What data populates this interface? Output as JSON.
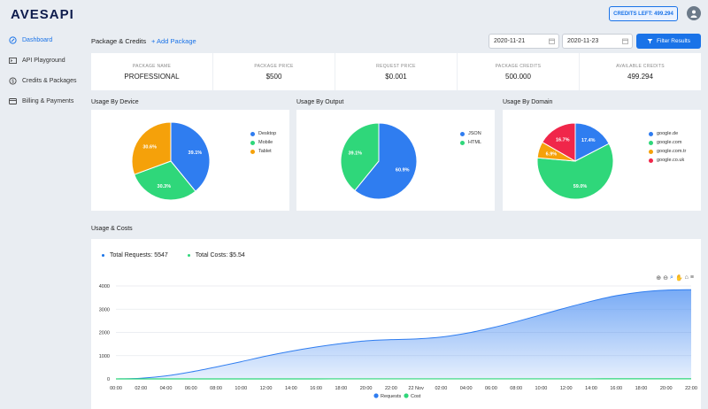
{
  "app": {
    "logo": "AVESAPI",
    "credits_left": "CREDITS LEFT: 499.294"
  },
  "sidebar": {
    "items": [
      {
        "label": "Dashboard",
        "icon": "dashboard-icon",
        "active": true
      },
      {
        "label": "API Playground",
        "icon": "terminal-icon",
        "active": false
      },
      {
        "label": "Credits & Packages",
        "icon": "dollar-icon",
        "active": false
      },
      {
        "label": "Billing & Payments",
        "icon": "card-icon",
        "active": false
      }
    ]
  },
  "toolbar": {
    "title": "Package & Credits",
    "add_package": "+ Add Package",
    "date_from": "2020-11-21",
    "date_to": "2020-11-23",
    "filter_label": "Filter Results"
  },
  "stats": [
    {
      "label": "PACKAGE NAME",
      "value": "PROFESSIONAL"
    },
    {
      "label": "PACKAGE PRICE",
      "value": "$500"
    },
    {
      "label": "REQUEST PRICE",
      "value": "$0.001"
    },
    {
      "label": "PACKAGE CREDITS",
      "value": "500.000"
    },
    {
      "label": "AVAILABLE CREDITS",
      "value": "499.294"
    }
  ],
  "colors": {
    "blue": "#1a73e8",
    "pie_blue": "#2f7df0",
    "green": "#2fd77a",
    "orange": "#f5a10a",
    "red": "#f0264a"
  },
  "sections": {
    "device": "Usage By Device",
    "output": "Usage By Output",
    "domain": "Usage By Domain",
    "usage": "Usage & Costs"
  },
  "pies": {
    "device": {
      "slices": [
        {
          "name": "Desktop",
          "value": 39.1,
          "label": "39.1%",
          "color": "#2f7df0"
        },
        {
          "name": "Mobile",
          "value": 30.3,
          "label": "30.3%",
          "color": "#2fd77a"
        },
        {
          "name": "Tablet",
          "value": 30.6,
          "label": "30.6%",
          "color": "#f5a10a"
        }
      ]
    },
    "output": {
      "slices": [
        {
          "name": "JSON",
          "value": 60.9,
          "label": "60.9%",
          "color": "#2f7df0"
        },
        {
          "name": "HTML",
          "value": 39.1,
          "label": "39.1%",
          "color": "#2fd77a"
        }
      ]
    },
    "domain": {
      "slices": [
        {
          "name": "google.de",
          "value": 17.4,
          "label": "17.4%",
          "color": "#2f7df0"
        },
        {
          "name": "google.com",
          "value": 59.0,
          "label": "59.0%",
          "color": "#2fd77a"
        },
        {
          "name": "google.com.tr",
          "value": 6.9,
          "label": "6.9%",
          "color": "#f5a10a"
        },
        {
          "name": "google.co.uk",
          "value": 16.7,
          "label": "16.7%",
          "color": "#f0264a"
        }
      ]
    }
  },
  "usage": {
    "total_requests": "Total Requests: 5547",
    "total_costs": "Total Costs: $5.54"
  },
  "chart_data": {
    "type": "area",
    "x": [
      "00:00",
      "02:00",
      "04:00",
      "06:00",
      "08:00",
      "10:00",
      "12:00",
      "14:00",
      "16:00",
      "18:00",
      "20:00",
      "22:00",
      "22 Nov",
      "02:00",
      "04:00",
      "06:00",
      "08:00",
      "10:00",
      "12:00",
      "14:00",
      "16:00",
      "18:00",
      "20:00",
      "22:00"
    ],
    "ylim": [
      0,
      4000
    ],
    "yticks": [
      "0",
      "1000",
      "2000",
      "3000",
      "4000"
    ],
    "series": [
      {
        "name": "Requests",
        "color": "#2f7df0",
        "values": [
          0,
          30,
          130,
          300,
          510,
          740,
          980,
          1190,
          1370,
          1520,
          1640,
          1690,
          1720,
          1800,
          1960,
          2190,
          2460,
          2760,
          3060,
          3340,
          3580,
          3740,
          3820,
          3840
        ]
      },
      {
        "name": "Cost",
        "color": "#2fd77a",
        "values": [
          0,
          0,
          0,
          0,
          0,
          0,
          0,
          1,
          1,
          2,
          2,
          2,
          2,
          2,
          2,
          2,
          3,
          3,
          3,
          3,
          4,
          4,
          4,
          4
        ]
      }
    ]
  }
}
